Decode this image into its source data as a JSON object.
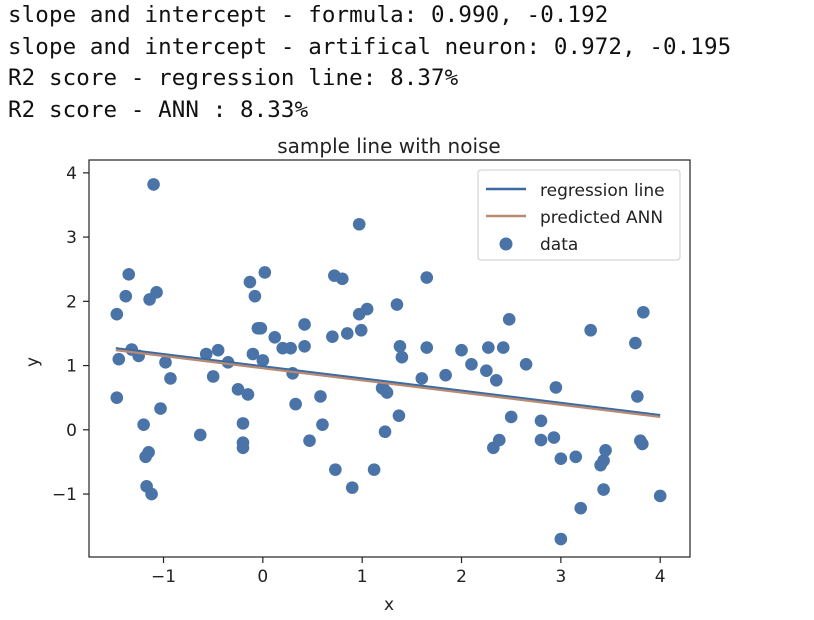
{
  "output_lines": [
    "slope and intercept - formula: 0.990, -0.192",
    "slope and intercept - artifical neuron: 0.972, -0.195",
    "R2 score - regression line: 8.37%",
    "R2 score - ANN : 8.33%"
  ],
  "chart_data": {
    "type": "scatter",
    "title": "sample line with noise",
    "xlabel": "x",
    "ylabel": "y",
    "xlim": [
      -1.75,
      4.3
    ],
    "ylim": [
      -1.98,
      4.2
    ],
    "xticks": [
      -1,
      0,
      1,
      2,
      3,
      4
    ],
    "xtick_labels": [
      "−1",
      "0",
      "1",
      "2",
      "3",
      "4"
    ],
    "yticks": [
      -1,
      0,
      1,
      2,
      3,
      4
    ],
    "ytick_labels": [
      "−1",
      "0",
      "1",
      "2",
      "3",
      "4"
    ],
    "grid": false,
    "legend_position": "top-right",
    "colors": {
      "data": "#4a73a8",
      "regression": "#3b6ba3",
      "ann": "#b98a72"
    },
    "series": [
      {
        "name": "regression line",
        "kind": "line",
        "x": [
          -1.48,
          4.0
        ],
        "y": [
          1.27,
          0.23
        ]
      },
      {
        "name": "predicted ANN",
        "kind": "line",
        "x": [
          -1.48,
          4.0
        ],
        "y": [
          1.24,
          0.2
        ]
      },
      {
        "name": "data",
        "kind": "scatter",
        "points": [
          [
            -1.47,
            1.8
          ],
          [
            -1.45,
            1.1
          ],
          [
            -1.47,
            0.5
          ],
          [
            -1.38,
            2.08
          ],
          [
            -1.35,
            2.42
          ],
          [
            -1.32,
            1.25
          ],
          [
            -1.25,
            1.15
          ],
          [
            -1.2,
            0.08
          ],
          [
            -1.18,
            -0.42
          ],
          [
            -1.15,
            -0.35
          ],
          [
            -1.17,
            -0.88
          ],
          [
            -1.12,
            -1.0
          ],
          [
            -1.14,
            2.03
          ],
          [
            -1.1,
            3.82
          ],
          [
            -1.07,
            2.14
          ],
          [
            -1.03,
            0.33
          ],
          [
            -0.98,
            1.05
          ],
          [
            -0.93,
            0.8
          ],
          [
            -0.63,
            -0.08
          ],
          [
            -0.57,
            1.18
          ],
          [
            -0.5,
            0.83
          ],
          [
            -0.45,
            1.24
          ],
          [
            -0.35,
            1.05
          ],
          [
            -0.25,
            0.63
          ],
          [
            -0.2,
            0.1
          ],
          [
            -0.2,
            -0.2
          ],
          [
            -0.2,
            -0.28
          ],
          [
            -0.15,
            0.55
          ],
          [
            -0.13,
            2.3
          ],
          [
            -0.08,
            2.08
          ],
          [
            -0.1,
            1.18
          ],
          [
            -0.05,
            1.58
          ],
          [
            -0.02,
            1.58
          ],
          [
            0.0,
            1.08
          ],
          [
            0.02,
            2.45
          ],
          [
            0.12,
            1.44
          ],
          [
            0.2,
            1.27
          ],
          [
            0.28,
            1.27
          ],
          [
            0.3,
            0.88
          ],
          [
            0.33,
            0.4
          ],
          [
            0.42,
            1.64
          ],
          [
            0.42,
            1.3
          ],
          [
            0.47,
            -0.17
          ],
          [
            0.58,
            0.52
          ],
          [
            0.6,
            0.08
          ],
          [
            0.7,
            1.45
          ],
          [
            0.72,
            2.4
          ],
          [
            0.73,
            -0.62
          ],
          [
            0.8,
            2.35
          ],
          [
            0.85,
            1.5
          ],
          [
            0.9,
            -0.9
          ],
          [
            0.97,
            3.2
          ],
          [
            0.97,
            1.8
          ],
          [
            0.99,
            1.55
          ],
          [
            1.05,
            1.88
          ],
          [
            1.12,
            -0.62
          ],
          [
            1.2,
            0.65
          ],
          [
            1.22,
            0.63
          ],
          [
            1.23,
            -0.03
          ],
          [
            1.25,
            0.58
          ],
          [
            1.35,
            1.95
          ],
          [
            1.37,
            0.22
          ],
          [
            1.38,
            1.3
          ],
          [
            1.4,
            1.13
          ],
          [
            1.6,
            0.8
          ],
          [
            1.65,
            1.28
          ],
          [
            1.65,
            2.37
          ],
          [
            1.84,
            0.85
          ],
          [
            2.0,
            1.24
          ],
          [
            2.1,
            1.02
          ],
          [
            2.25,
            0.92
          ],
          [
            2.27,
            1.28
          ],
          [
            2.32,
            -0.28
          ],
          [
            2.35,
            0.77
          ],
          [
            2.38,
            -0.16
          ],
          [
            2.42,
            1.28
          ],
          [
            2.48,
            1.72
          ],
          [
            2.5,
            0.2
          ],
          [
            2.65,
            1.02
          ],
          [
            2.8,
            0.14
          ],
          [
            2.8,
            -0.16
          ],
          [
            2.93,
            -0.12
          ],
          [
            2.95,
            0.66
          ],
          [
            3.0,
            -0.45
          ],
          [
            3.0,
            -1.7
          ],
          [
            3.15,
            -0.42
          ],
          [
            3.2,
            -1.22
          ],
          [
            3.3,
            1.55
          ],
          [
            3.4,
            -0.55
          ],
          [
            3.43,
            -0.48
          ],
          [
            3.45,
            -0.32
          ],
          [
            3.43,
            -0.93
          ],
          [
            3.75,
            1.35
          ],
          [
            3.77,
            0.52
          ],
          [
            3.8,
            -0.17
          ],
          [
            3.82,
            -0.22
          ],
          [
            3.83,
            1.83
          ],
          [
            4.0,
            -1.03
          ]
        ]
      }
    ]
  }
}
